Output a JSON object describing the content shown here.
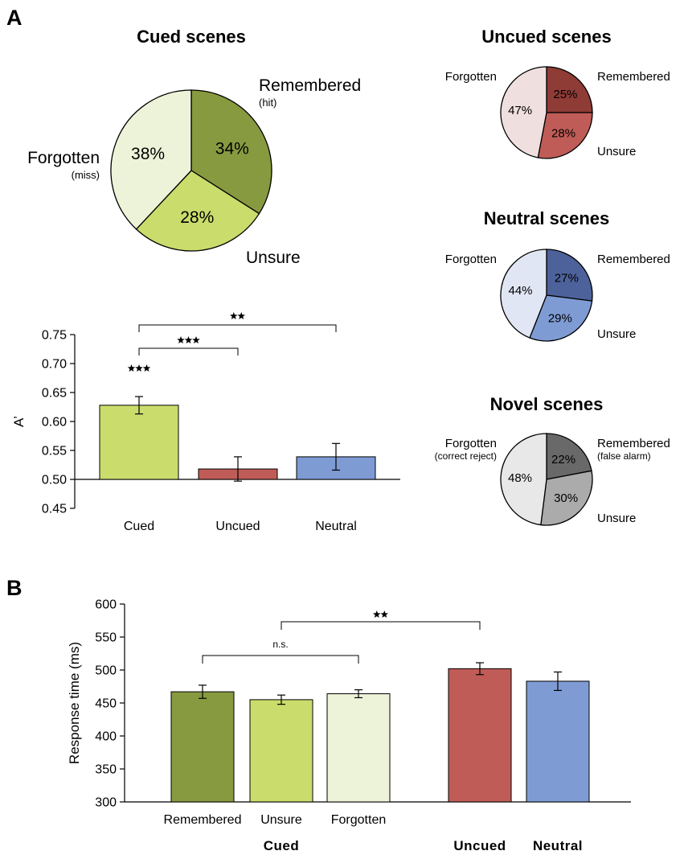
{
  "panels": {
    "a": "A",
    "b": "B"
  },
  "chart_data": [
    {
      "type": "pie",
      "title": "Cued scenes",
      "slices": [
        {
          "label": "Remembered",
          "sublabel": "(hit)",
          "value": 34,
          "pct": "34%",
          "color": "#889a40"
        },
        {
          "label": "Unsure",
          "sublabel": "",
          "value": 28,
          "pct": "28%",
          "color": "#cadc6c"
        },
        {
          "label": "Forgotten",
          "sublabel": "(miss)",
          "value": 38,
          "pct": "38%",
          "color": "#ecf3d8"
        }
      ]
    },
    {
      "type": "pie",
      "title": "Uncued scenes",
      "slices": [
        {
          "label": "Remembered",
          "sublabel": "",
          "value": 25,
          "pct": "25%",
          "color": "#8f3b36"
        },
        {
          "label": "Unsure",
          "sublabel": "",
          "value": 28,
          "pct": "28%",
          "color": "#c05c57"
        },
        {
          "label": "Forgotten",
          "sublabel": "",
          "value": 47,
          "pct": "47%",
          "color": "#f0dfdf"
        }
      ]
    },
    {
      "type": "pie",
      "title": "Neutral scenes",
      "slices": [
        {
          "label": "Remembered",
          "sublabel": "",
          "value": 27,
          "pct": "27%",
          "color": "#4d629b"
        },
        {
          "label": "Unsure",
          "sublabel": "",
          "value": 29,
          "pct": "29%",
          "color": "#7e9bd4"
        },
        {
          "label": "Forgotten",
          "sublabel": "",
          "value": 44,
          "pct": "44%",
          "color": "#e1e6f4"
        }
      ]
    },
    {
      "type": "pie",
      "title": "Novel scenes",
      "slices": [
        {
          "label": "Remembered",
          "sublabel": "(false alarm)",
          "value": 22,
          "pct": "22%",
          "color": "#696969"
        },
        {
          "label": "Unsure",
          "sublabel": "",
          "value": 30,
          "pct": "30%",
          "color": "#ababab"
        },
        {
          "label": "Forgotten",
          "sublabel": "(correct reject)",
          "value": 48,
          "pct": "48%",
          "color": "#e8e8e8"
        }
      ]
    },
    {
      "type": "bar",
      "ylabel": "A’",
      "ylim": [
        0.45,
        0.75
      ],
      "yticks": [
        "0.45",
        "0.50",
        "0.55",
        "0.60",
        "0.65",
        "0.70",
        "0.75"
      ],
      "baseline": 0.5,
      "categories": [
        "Cued",
        "Uncued",
        "Neutral"
      ],
      "values": [
        0.628,
        0.518,
        0.539
      ],
      "errors": [
        0.015,
        0.021,
        0.023
      ],
      "colors": [
        "#cadc6c",
        "#c05c57",
        "#7e9bd4"
      ],
      "significance": [
        {
          "from": 0,
          "to": 0,
          "label": "★★★"
        },
        {
          "from": 0,
          "to": 1,
          "label": "★★★"
        },
        {
          "from": 0,
          "to": 2,
          "label": "★★"
        }
      ]
    },
    {
      "type": "bar",
      "ylabel": "Response time (ms)",
      "ylim": [
        300,
        600
      ],
      "yticks": [
        "300",
        "350",
        "400",
        "450",
        "500",
        "550",
        "600"
      ],
      "categories": [
        "Remembered",
        "Unsure",
        "Forgotten",
        "",
        ""
      ],
      "group_labels": [
        "Cued",
        "Uncued",
        "Neutral"
      ],
      "values": [
        467,
        455,
        464,
        502,
        483
      ],
      "errors": [
        10,
        7,
        6,
        9,
        14
      ],
      "colors": [
        "#889a40",
        "#cadc6c",
        "#ecf3d8",
        "#c05c57",
        "#7e9bd4"
      ],
      "significance": [
        {
          "from": 0,
          "to": 2,
          "label": "n.s."
        },
        {
          "from": 1,
          "to": 3,
          "label": "★★"
        }
      ]
    }
  ]
}
